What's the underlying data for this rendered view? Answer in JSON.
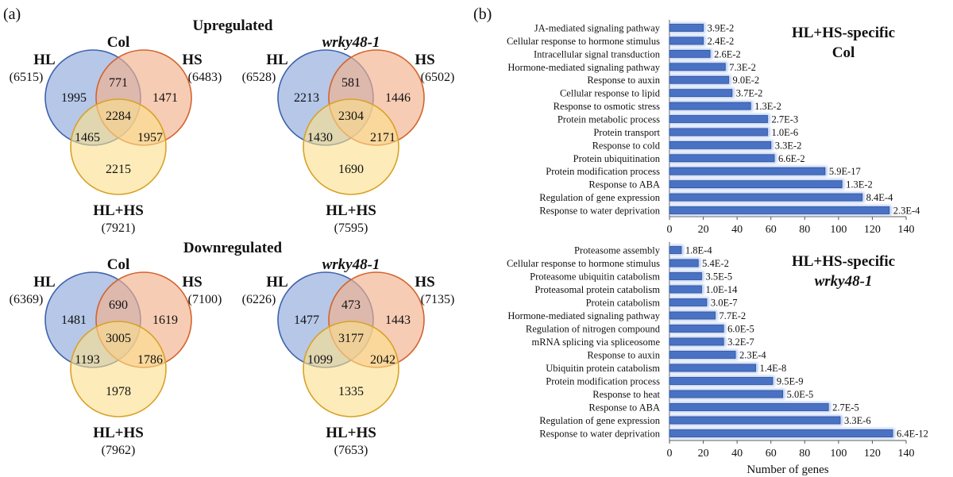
{
  "panel_labels": {
    "a": "(a)",
    "b": "(b)"
  },
  "colors": {
    "hl_fill": "#8fa9dc",
    "hl_stroke": "#3e63ab",
    "hs_fill": "#f3b08c",
    "hs_stroke": "#d2642d",
    "hlhs_fill": "#fce08a",
    "hlhs_stroke": "#d8a227",
    "bar_fill": "#4a72c4",
    "bar_glow": "#b7caf0",
    "axis": "#555555"
  },
  "venn": {
    "up_heading": "Upregulated",
    "down_heading": "Downregulated",
    "diagrams": [
      {
        "genotype": "Col",
        "italic": false,
        "hl_label": "HL",
        "hl_total": "(6515)",
        "hs_label": "HS",
        "hs_total": "(6483)",
        "hlhs_label": "HL+HS",
        "hlhs_total": "(7921)",
        "hl_only": "1995",
        "hs_only": "1471",
        "hlhs_only": "2215",
        "hl_hs": "771",
        "hl_hlhs": "1465",
        "hs_hlhs": "1957",
        "all": "2284"
      },
      {
        "genotype": "wrky48-1",
        "italic": true,
        "hl_label": "HL",
        "hl_total": "(6528)",
        "hs_label": "HS",
        "hs_total": "(6502)",
        "hlhs_label": "HL+HS",
        "hlhs_total": "(7595)",
        "hl_only": "2213",
        "hs_only": "1446",
        "hlhs_only": "1690",
        "hl_hs": "581",
        "hl_hlhs": "1430",
        "hs_hlhs": "2171",
        "all": "2304"
      },
      {
        "genotype": "Col",
        "italic": false,
        "hl_label": "HL",
        "hl_total": "(6369)",
        "hs_label": "HS",
        "hs_total": "(7100)",
        "hlhs_label": "HL+HS",
        "hlhs_total": "(7962)",
        "hl_only": "1481",
        "hs_only": "1619",
        "hlhs_only": "1978",
        "hl_hs": "690",
        "hl_hlhs": "1193",
        "hs_hlhs": "1786",
        "all": "3005"
      },
      {
        "genotype": "wrky48-1",
        "italic": true,
        "hl_label": "HL",
        "hl_total": "(6226)",
        "hs_label": "HS",
        "hs_total": "(7135)",
        "hlhs_label": "HL+HS",
        "hlhs_total": "(7653)",
        "hl_only": "1477",
        "hs_only": "1443",
        "hlhs_only": "1335",
        "hl_hs": "473",
        "hl_hlhs": "1099",
        "hs_hlhs": "2042",
        "all": "3177"
      }
    ]
  },
  "chart_data": [
    {
      "type": "bar",
      "orientation": "horizontal",
      "title": "HL+HS-specific",
      "subtitle": "Col",
      "subtitle_italic": false,
      "xlabel": "",
      "xlim": [
        0,
        140
      ],
      "xticks": [
        "0",
        "20",
        "40",
        "60",
        "80",
        "100",
        "120",
        "140"
      ],
      "categories": [
        "JA-mediated signaling pathway",
        "Cellular response to hormone stimulus",
        "Intracellular signal transduction",
        "Hormone-mediated signaling pathway",
        "Response to auxin",
        "Cellular response to lipid",
        "Response to osmotic stress",
        "Protein metabolic process",
        "Protein transport",
        "Response to cold",
        "Protein ubiquitination",
        "Protein modification process",
        "Response to ABA",
        "Regulation of gene expression",
        "Response to water deprivation"
      ],
      "values": [
        20,
        20,
        24,
        33,
        35,
        37,
        48,
        58,
        58,
        60,
        62,
        92,
        102,
        114,
        130
      ],
      "pvalues": [
        "3.9E-2",
        "2.4E-2",
        "2.6E-2",
        "7.3E-2",
        "9.0E-2",
        "3.7E-2",
        "1.3E-2",
        "2.7E-3",
        "1.0E-6",
        "3.3E-2",
        "6.6E-2",
        "5.9E-17",
        "1.3E-2",
        "8.4E-4",
        "2.3E-4"
      ]
    },
    {
      "type": "bar",
      "orientation": "horizontal",
      "title": "HL+HS-specific",
      "subtitle": "wrky48-1",
      "subtitle_italic": true,
      "xlabel": "Number of genes",
      "xlim": [
        0,
        140
      ],
      "xticks": [
        "0",
        "20",
        "40",
        "60",
        "80",
        "100",
        "120",
        "140"
      ],
      "categories": [
        "Proteasome assembly",
        "Cellular response to hormone stimulus",
        "Proteasome ubiquitin catabolism",
        "Proteasomal protein catabolism",
        "Protein catabolism",
        "Hormone-mediated signaling pathway",
        "Regulation of nitrogen compound",
        "mRNA splicing via spliceosome",
        "Response to auxin",
        "Ubiquitin protein catabolism",
        "Protein modification process",
        "Response to heat",
        "Response to ABA",
        "Regulation of gene expression",
        "Response to water deprivation"
      ],
      "values": [
        7,
        17,
        19,
        19,
        22,
        27,
        32,
        32,
        39,
        51,
        61,
        67,
        94,
        101,
        132
      ],
      "pvalues": [
        "1.8E-4",
        "5.4E-2",
        "3.5E-5",
        "1.0E-14",
        "3.0E-7",
        "7.7E-2",
        "6.0E-5",
        "3.2E-7",
        "2.3E-4",
        "1.4E-8",
        "9.5E-9",
        "5.0E-5",
        "2.7E-5",
        "3.3E-6",
        "6.4E-12"
      ]
    }
  ]
}
